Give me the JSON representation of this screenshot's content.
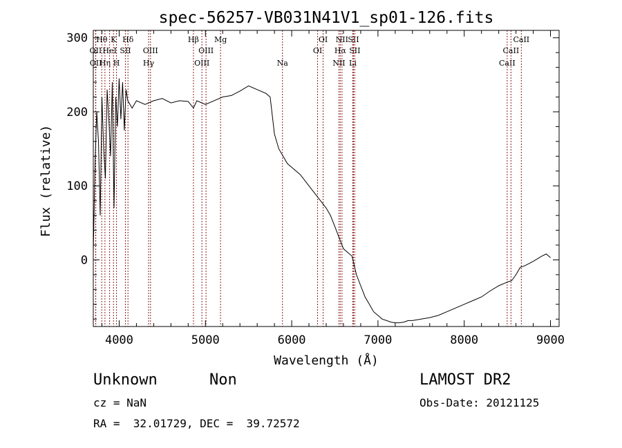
{
  "chart_data": {
    "type": "line",
    "title": "spec-56257-VB031N41V1_sp01-126.fits",
    "xlabel": "Wavelength (Å)",
    "ylabel": "Flux (relative)",
    "xlim": [
      3700,
      9100
    ],
    "ylim": [
      -90,
      310
    ],
    "x_ticks": [
      4000,
      5000,
      6000,
      7000,
      8000,
      9000
    ],
    "y_ticks": [
      0,
      100,
      200,
      300
    ],
    "grid": false,
    "series": [
      {
        "x": [
          3700,
          3720,
          3740,
          3760,
          3780,
          3800,
          3820,
          3840,
          3860,
          3880,
          3900,
          3920,
          3940,
          3960,
          3980,
          4000,
          4020,
          4040,
          4060,
          4080,
          4100,
          4150,
          4200,
          4300,
          4400,
          4500,
          4600,
          4700,
          4800,
          4861,
          4900,
          5000,
          5100,
          5200,
          5300,
          5400,
          5500,
          5600,
          5700,
          5750,
          5800,
          5850,
          5900,
          5950,
          6000,
          6100,
          6200,
          6300,
          6400,
          6450,
          6500,
          6550,
          6600,
          6650,
          6700,
          6750,
          6800,
          6850,
          6900,
          6950,
          7000,
          7050,
          7100,
          7150,
          7200,
          7250,
          7300,
          7350,
          7400,
          7500,
          7600,
          7700,
          7800,
          7900,
          8000,
          8100,
          8200,
          8300,
          8400,
          8500,
          8550,
          8600,
          8650,
          8700,
          8800,
          8900,
          8950,
          9000
        ],
        "y": [
          10,
          130,
          200,
          160,
          60,
          220,
          150,
          110,
          230,
          190,
          140,
          240,
          70,
          220,
          180,
          245,
          190,
          240,
          175,
          230,
          215,
          205,
          215,
          210,
          215,
          218,
          212,
          215,
          214,
          205,
          215,
          210,
          215,
          220,
          222,
          228,
          235,
          230,
          225,
          220,
          170,
          150,
          140,
          130,
          125,
          115,
          100,
          85,
          70,
          60,
          45,
          30,
          15,
          10,
          5,
          -20,
          -35,
          -50,
          -60,
          -70,
          -75,
          -80,
          -82,
          -84,
          -85,
          -85,
          -84,
          -82,
          -82,
          -80,
          -78,
          -75,
          -70,
          -65,
          -60,
          -55,
          -50,
          -42,
          -35,
          -30,
          -28,
          -20,
          -10,
          -8,
          -2,
          5,
          8,
          3
        ]
      }
    ],
    "lines": [
      {
        "name": "Hθ",
        "x": 3798,
        "row": 1
      },
      {
        "name": "OII",
        "x": 3727,
        "row": 2
      },
      {
        "name": "OII",
        "x": 3729,
        "row": 3
      },
      {
        "name": "Hη",
        "x": 3835,
        "row": 3
      },
      {
        "name": "HeI",
        "x": 3889,
        "row": 2
      },
      {
        "name": "K",
        "x": 3934,
        "row": 1
      },
      {
        "name": "H",
        "x": 3969,
        "row": 3
      },
      {
        "name": "SII",
        "x": 4072,
        "row": 2
      },
      {
        "name": "Hδ",
        "x": 4102,
        "row": 1
      },
      {
        "name": "OIII",
        "x": 4363,
        "row": 2
      },
      {
        "name": "Hγ",
        "x": 4341,
        "row": 3
      },
      {
        "name": "Hβ",
        "x": 4861,
        "row": 1
      },
      {
        "name": "OIII",
        "x": 4959,
        "row": 3
      },
      {
        "name": "OIII",
        "x": 5007,
        "row": 2
      },
      {
        "name": "Mg",
        "x": 5175,
        "row": 1
      },
      {
        "name": "Na",
        "x": 5893,
        "row": 3
      },
      {
        "name": "OI",
        "x": 6300,
        "row": 2
      },
      {
        "name": "OI",
        "x": 6364,
        "row": 1
      },
      {
        "name": "NII",
        "x": 6548,
        "row": 3
      },
      {
        "name": "Hα",
        "x": 6563,
        "row": 2
      },
      {
        "name": "NII",
        "x": 6583,
        "row": 1
      },
      {
        "name": "SII",
        "x": 6716,
        "row": 1
      },
      {
        "name": "SII",
        "x": 6731,
        "row": 2
      },
      {
        "name": "Li",
        "x": 6708,
        "row": 3
      },
      {
        "name": "CaII",
        "x": 8498,
        "row": 3
      },
      {
        "name": "CaII",
        "x": 8542,
        "row": 2
      },
      {
        "name": "CaII",
        "x": 8662,
        "row": 1
      }
    ],
    "line_color": "#8b1a1a"
  },
  "info": {
    "object_class": "Unknown",
    "subclass": "Non",
    "survey": "LAMOST DR2",
    "cz": "cz = NaN",
    "obs_date": "Obs-Date: 20121125",
    "coords": "RA =  32.01729, DEC =  39.72572"
  }
}
